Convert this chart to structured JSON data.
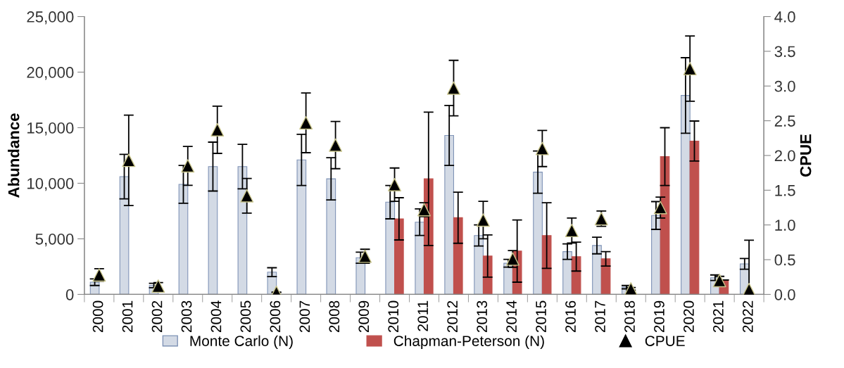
{
  "chart_data": {
    "type": "bar",
    "ylabel": "Abundance",
    "y2label": "CPUE",
    "categories": [
      "2000",
      "2001",
      "2002",
      "2003",
      "2004",
      "2005",
      "2006",
      "2007",
      "2008",
      "2009",
      "2010",
      "2011",
      "2012",
      "2013",
      "2014",
      "2015",
      "2016",
      "2017",
      "2018",
      "2019",
      "2020",
      "2021",
      "2022"
    ],
    "series": [
      {
        "name": "Monte Carlo (N)",
        "color": "#d3dae5",
        "values": [
          1100,
          10600,
          800,
          9900,
          11500,
          11500,
          2000,
          12100,
          10400,
          3300,
          8300,
          6500,
          14300,
          5300,
          2800,
          11000,
          3850,
          4400,
          650,
          7100,
          17900,
          1500,
          2750
        ],
        "errors": [
          300,
          2000,
          200,
          1700,
          2200,
          2000,
          400,
          2300,
          1900,
          500,
          1500,
          1200,
          2700,
          950,
          350,
          1900,
          700,
          750,
          150,
          1250,
          3400,
          250,
          480
        ]
      },
      {
        "name": "Chapman-Peterson (N)",
        "color": "#c0504d",
        "values": [
          null,
          null,
          null,
          null,
          null,
          null,
          null,
          null,
          null,
          null,
          6800,
          10400,
          6900,
          3450,
          3900,
          5300,
          3400,
          3200,
          null,
          12400,
          13800,
          1300,
          null
        ],
        "errors": [
          null,
          null,
          null,
          null,
          null,
          null,
          null,
          null,
          null,
          null,
          1900,
          6000,
          2300,
          1900,
          2800,
          2950,
          1300,
          650,
          null,
          2600,
          1800,
          null,
          null
        ]
      },
      {
        "name": "CPUE",
        "type": "scatter",
        "axis": "y2",
        "color": "#000000",
        "marker": "triangle",
        "values": [
          0.28,
          1.93,
          0.12,
          1.85,
          2.37,
          1.42,
          0.03,
          2.47,
          2.15,
          0.55,
          1.58,
          1.22,
          2.97,
          1.07,
          0.51,
          2.1,
          0.92,
          1.09,
          0.08,
          1.25,
          3.25,
          0.2,
          0.07
        ],
        "errors": [
          0.09,
          0.65,
          0.05,
          0.28,
          0.34,
          0.25,
          null,
          0.43,
          0.34,
          0.1,
          0.24,
          0.1,
          0.4,
          0.27,
          0.12,
          0.26,
          0.18,
          0.11,
          0.02,
          0.15,
          0.47,
          0.06,
          [
            0.0,
            0.78
          ]
        ]
      }
    ],
    "ylim": [
      0,
      25000
    ],
    "yticks": [
      {
        "value": 0,
        "label": "0"
      },
      {
        "value": 5000,
        "label": "5,000"
      },
      {
        "value": 10000,
        "label": "10,000"
      },
      {
        "value": 15000,
        "label": "15,000"
      },
      {
        "value": 20000,
        "label": "20,000"
      },
      {
        "value": 25000,
        "label": "25,000"
      }
    ],
    "y2lim": [
      0,
      4.0
    ],
    "y2ticks": [
      {
        "value": 0,
        "label": "0.0"
      },
      {
        "value": 0.5,
        "label": "0.5"
      },
      {
        "value": 1.0,
        "label": "1.0"
      },
      {
        "value": 1.5,
        "label": "1.5"
      },
      {
        "value": 2.0,
        "label": "2.0"
      },
      {
        "value": 2.5,
        "label": "2.5"
      },
      {
        "value": 3.0,
        "label": "3.0"
      },
      {
        "value": 3.5,
        "label": "3.5"
      },
      {
        "value": 4.0,
        "label": "4.0"
      }
    ],
    "grid": false,
    "legend": "bottom"
  }
}
